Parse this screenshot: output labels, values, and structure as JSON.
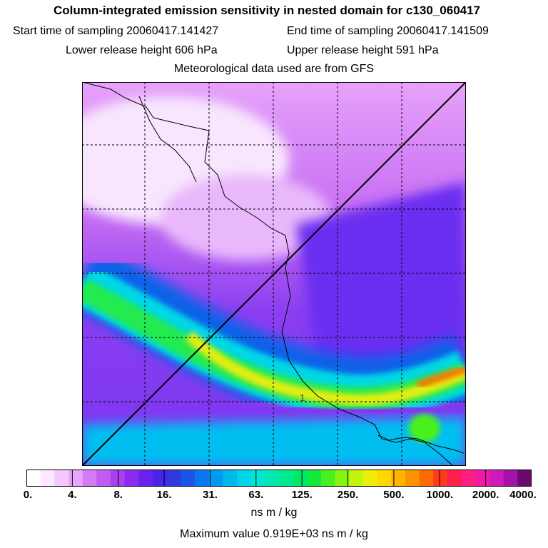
{
  "header": {
    "title": "Column-integrated emission sensitivity in nested domain for c130_060417",
    "start_time": "Start time of sampling 20060417.141427",
    "end_time": "End time of sampling 20060417.141509",
    "lower_release": "Lower release height  606 hPa",
    "upper_release": "Upper release height  591 hPa",
    "met_data": "Meteorological data used are from GFS"
  },
  "chart_data": {
    "type": "heatmap",
    "title": "Column-integrated emission sensitivity in nested domain for c130_060417",
    "colorbar": {
      "tick_labels": [
        "0.",
        "4.",
        "8.",
        "16.",
        "31.",
        "63.",
        "125.",
        "250.",
        "500.",
        "1000.",
        "2000.",
        "4000."
      ],
      "colors": [
        "#ffffff",
        "#fde8ff",
        "#f3c8ff",
        "#e6a6fb",
        "#d57bf5",
        "#c15cf1",
        "#a93fef",
        "#8a2bef",
        "#6a22ef",
        "#4a24e8",
        "#3038e0",
        "#1a55e6",
        "#0a77ee",
        "#0099f0",
        "#00b8ee",
        "#00d4e8",
        "#00e6d2",
        "#00eab0",
        "#00e890",
        "#00e86a",
        "#14ea3c",
        "#4af01e",
        "#88f414",
        "#c4f40c",
        "#ecee08",
        "#ffd800",
        "#ffb400",
        "#ff9200",
        "#ff6a00",
        "#ff3a1a",
        "#ff1f4f",
        "#ff1e84",
        "#f01aa8",
        "#d01ab8",
        "#a612a8",
        "#6a0a6e"
      ],
      "units": "ns m / kg"
    },
    "max_value_text": "Maximum value  0.919E+03 ns m / kg",
    "annotations": [
      "1"
    ],
    "grid": true,
    "diagonal_line": true
  }
}
